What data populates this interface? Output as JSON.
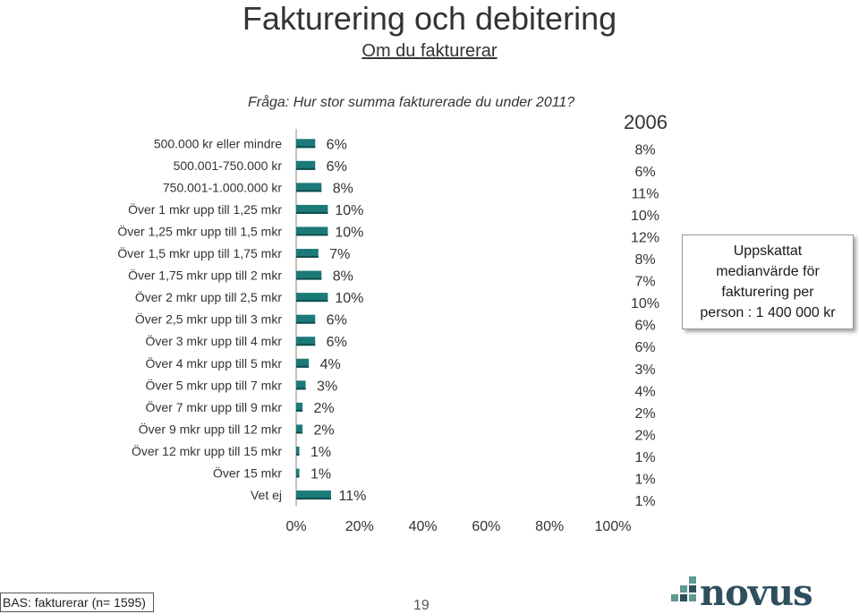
{
  "header": {
    "title": "Fakturering och debitering",
    "subtitle": "Om du fakturerar",
    "question": "Fråga: Hur stor summa fakturerade du under 2011?",
    "year_label": "2006"
  },
  "callout": {
    "lines": [
      "Uppskattat",
      "medianvärde för",
      "fakturering per",
      "person : 1 400 000 kr"
    ]
  },
  "footer": {
    "base": "BAS: fakturerar (n= 1595)",
    "page_number": "19",
    "logo_text": "novus"
  },
  "colors": {
    "bar": "#1b7a78",
    "bar_dark": "#0e4f4e",
    "logo": "#2f4f5f",
    "logo_green": "#5e9a8f"
  },
  "chart_data": {
    "type": "bar",
    "orientation": "horizontal",
    "categories": [
      "500.000 kr eller mindre",
      "500.001-750.000 kr",
      "750.001-1.000.000 kr",
      "Över 1 mkr upp till 1,25 mkr",
      "Över 1,25 mkr upp till 1,5 mkr",
      "Över 1,5 mkr upp till 1,75 mkr",
      "Över 1,75 mkr upp till 2 mkr",
      "Över 2 mkr upp till 2,5 mkr",
      "Över 2,5 mkr upp till 3 mkr",
      "Över 3 mkr upp till 4 mkr",
      "Över 4 mkr upp till 5 mkr",
      "Över 5 mkr upp till 7 mkr",
      "Över 7 mkr upp till 9 mkr",
      "Över 9 mkr upp till 12 mkr",
      "Över 12 mkr upp till 15 mkr",
      "Över 15 mkr",
      "Vet ej"
    ],
    "values": [
      6,
      6,
      8,
      10,
      10,
      7,
      8,
      10,
      6,
      6,
      4,
      3,
      2,
      2,
      1,
      1,
      11
    ],
    "value_labels": [
      "6%",
      "6%",
      "8%",
      "10%",
      "10%",
      "7%",
      "8%",
      "10%",
      "6%",
      "6%",
      "4%",
      "3%",
      "2%",
      "2%",
      "1%",
      "1%",
      "11%"
    ],
    "comparison_labels": [
      "8%",
      "6%",
      "11%",
      "10%",
      "12%",
      "8%",
      "7%",
      "10%",
      "6%",
      "6%",
      "3%",
      "4%",
      "2%",
      "2%",
      "1%",
      "1%",
      "1%"
    ],
    "xlim": [
      0,
      100
    ],
    "x_ticks": [
      0,
      20,
      40,
      60,
      80,
      100
    ],
    "x_tick_labels": [
      "0%",
      "20%",
      "40%",
      "60%",
      "80%",
      "100%"
    ],
    "grid": false,
    "legend": "none"
  }
}
